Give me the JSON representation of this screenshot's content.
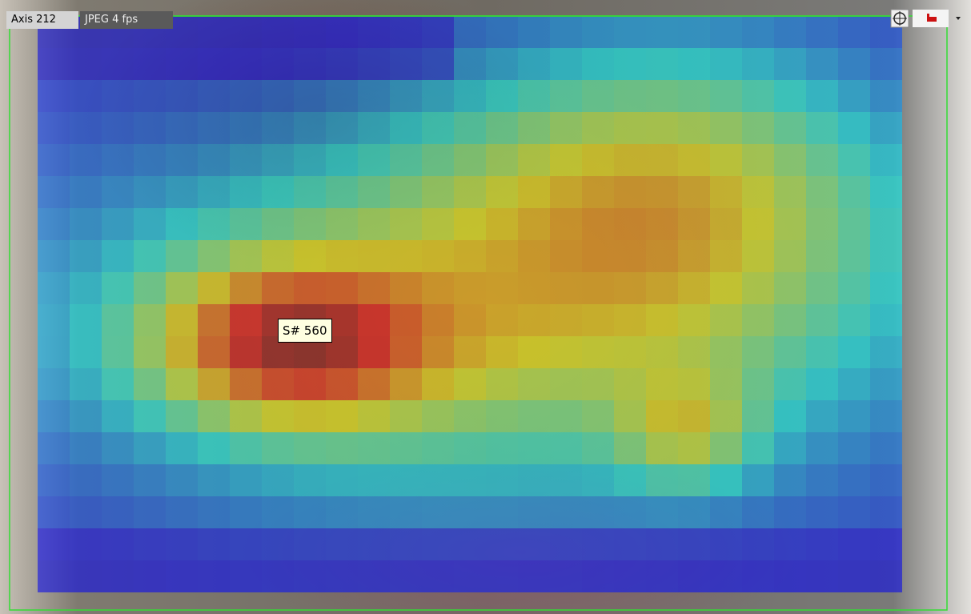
{
  "toolbar": {
    "camera_name": "Axis 212",
    "stream_info": "JPEG 4 fps"
  },
  "tooltip": {
    "label": "S# 560"
  }
}
